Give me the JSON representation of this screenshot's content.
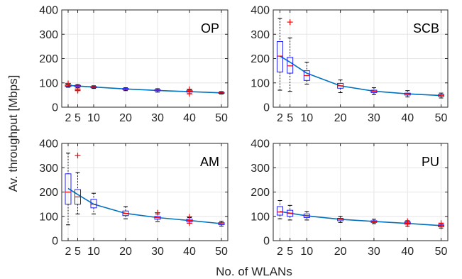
{
  "figure": {
    "ylabel": "Av. throughput [Mbps]",
    "xlabel": "No. of WLANs"
  },
  "colors": {
    "box": "#1f1fff",
    "median": "#ff0000",
    "outlier": "#ff0000",
    "whisker": "#000000",
    "mean_line": "#0072bd",
    "grid": "#e6e6e6"
  },
  "chart_data": [
    {
      "type": "box",
      "title": "OP",
      "x_ticks": [
        2,
        5,
        10,
        20,
        30,
        40,
        50
      ],
      "x_tick_labels": [
        "2",
        "5",
        "10",
        "20",
        "30",
        "40",
        "50"
      ],
      "xlim": [
        0,
        52
      ],
      "y_ticks": [
        0,
        100,
        200,
        300,
        400
      ],
      "ylim": [
        0,
        400
      ],
      "grid": true,
      "boxes": [
        {
          "x": 2,
          "whisker_low": 82,
          "q1": 85,
          "median": 88,
          "q3": 92,
          "whisker_high": 96,
          "outliers": [
            98
          ]
        },
        {
          "x": 5,
          "whisker_low": 80,
          "q1": 84,
          "median": 87,
          "q3": 90,
          "whisker_high": 93,
          "outliers": [
            75,
            70,
            68
          ]
        },
        {
          "x": 10,
          "whisker_low": 77,
          "q1": 80,
          "median": 82,
          "q3": 85,
          "whisker_high": 88,
          "outliers": []
        },
        {
          "x": 20,
          "whisker_low": 68,
          "q1": 72,
          "median": 74,
          "q3": 77,
          "whisker_high": 80,
          "outliers": []
        },
        {
          "x": 30,
          "whisker_low": 62,
          "q1": 67,
          "median": 69,
          "q3": 72,
          "whisker_high": 76,
          "outliers": []
        },
        {
          "x": 40,
          "whisker_low": 56,
          "q1": 62,
          "median": 65,
          "q3": 68,
          "whisker_high": 72,
          "outliers": [
            74,
            55
          ]
        },
        {
          "x": 50,
          "whisker_low": 54,
          "q1": 57,
          "median": 59,
          "q3": 61,
          "whisker_high": 64,
          "outliers": []
        }
      ],
      "mean_line": {
        "x": [
          2,
          5,
          10,
          20,
          30,
          40,
          50
        ],
        "y": [
          90,
          87,
          83,
          75,
          69,
          64,
          59
        ]
      }
    },
    {
      "type": "box",
      "title": "SCB",
      "x_ticks": [
        2,
        5,
        10,
        20,
        30,
        40,
        50
      ],
      "x_tick_labels": [
        "2",
        "5",
        "10",
        "20",
        "30",
        "40",
        "50"
      ],
      "xlim": [
        0,
        52
      ],
      "y_ticks": [
        0,
        100,
        200,
        300,
        400
      ],
      "ylim": [
        0,
        400
      ],
      "grid": true,
      "boxes": [
        {
          "x": 2,
          "whisker_low": 70,
          "q1": 145,
          "median": 210,
          "q3": 270,
          "whisker_high": 365,
          "outliers": []
        },
        {
          "x": 5,
          "whisker_low": 65,
          "q1": 140,
          "median": 170,
          "q3": 205,
          "whisker_high": 285,
          "outliers": [
            350
          ]
        },
        {
          "x": 10,
          "whisker_low": 95,
          "q1": 110,
          "median": 130,
          "q3": 150,
          "whisker_high": 185,
          "outliers": []
        },
        {
          "x": 20,
          "whisker_low": 60,
          "q1": 78,
          "median": 88,
          "q3": 98,
          "whisker_high": 112,
          "outliers": []
        },
        {
          "x": 30,
          "whisker_low": 52,
          "q1": 60,
          "median": 65,
          "q3": 70,
          "whisker_high": 80,
          "outliers": []
        },
        {
          "x": 40,
          "whisker_low": 42,
          "q1": 50,
          "median": 55,
          "q3": 58,
          "whisker_high": 68,
          "outliers": []
        },
        {
          "x": 50,
          "whisker_low": 38,
          "q1": 45,
          "median": 49,
          "q3": 52,
          "whisker_high": 58,
          "outliers": []
        }
      ],
      "mean_line": {
        "x": [
          2,
          5,
          10,
          20,
          30,
          40,
          50
        ],
        "y": [
          210,
          185,
          140,
          88,
          66,
          55,
          48
        ]
      }
    },
    {
      "type": "box",
      "title": "AM",
      "x_ticks": [
        2,
        5,
        10,
        20,
        30,
        40,
        50
      ],
      "x_tick_labels": [
        "2",
        "5",
        "10",
        "20",
        "30",
        "40",
        "50"
      ],
      "xlim": [
        0,
        52
      ],
      "y_ticks": [
        0,
        100,
        200,
        300,
        400
      ],
      "ylim": [
        0,
        400
      ],
      "grid": true,
      "boxes": [
        {
          "x": 2,
          "whisker_low": 65,
          "q1": 150,
          "median": 200,
          "q3": 275,
          "whisker_high": 360,
          "outliers": []
        },
        {
          "x": 5,
          "whisker_low": 110,
          "q1": 150,
          "median": 180,
          "q3": 210,
          "whisker_high": 280,
          "outliers": [
            350
          ]
        },
        {
          "x": 10,
          "whisker_low": 110,
          "q1": 135,
          "median": 150,
          "q3": 170,
          "whisker_high": 195,
          "outliers": []
        },
        {
          "x": 20,
          "whisker_low": 90,
          "q1": 103,
          "median": 112,
          "q3": 122,
          "whisker_high": 140,
          "outliers": []
        },
        {
          "x": 30,
          "whisker_low": 78,
          "q1": 88,
          "median": 95,
          "q3": 100,
          "whisker_high": 110,
          "outliers": [
            115
          ]
        },
        {
          "x": 40,
          "whisker_low": 72,
          "q1": 78,
          "median": 83,
          "q3": 88,
          "whisker_high": 95,
          "outliers": [
            98,
            72
          ]
        },
        {
          "x": 50,
          "whisker_low": 60,
          "q1": 66,
          "median": 70,
          "q3": 74,
          "whisker_high": 80,
          "outliers": []
        }
      ],
      "mean_line": {
        "x": [
          2,
          5,
          10,
          20,
          30,
          40,
          50
        ],
        "y": [
          215,
          190,
          150,
          112,
          95,
          83,
          70
        ]
      }
    },
    {
      "type": "box",
      "title": "PU",
      "x_ticks": [
        2,
        5,
        10,
        20,
        30,
        40,
        50
      ],
      "x_tick_labels": [
        "2",
        "5",
        "10",
        "20",
        "30",
        "40",
        "50"
      ],
      "xlim": [
        0,
        52
      ],
      "y_ticks": [
        0,
        100,
        200,
        300,
        400
      ],
      "ylim": [
        0,
        400
      ],
      "grid": true,
      "boxes": [
        {
          "x": 2,
          "whisker_low": 90,
          "q1": 105,
          "median": 118,
          "q3": 140,
          "whisker_high": 165,
          "outliers": []
        },
        {
          "x": 5,
          "whisker_low": 85,
          "q1": 100,
          "median": 113,
          "q3": 125,
          "whisker_high": 145,
          "outliers": []
        },
        {
          "x": 10,
          "whisker_low": 85,
          "q1": 95,
          "median": 103,
          "q3": 110,
          "whisker_high": 120,
          "outliers": []
        },
        {
          "x": 20,
          "whisker_low": 75,
          "q1": 82,
          "median": 88,
          "q3": 92,
          "whisker_high": 100,
          "outliers": []
        },
        {
          "x": 30,
          "whisker_low": 70,
          "q1": 75,
          "median": 78,
          "q3": 82,
          "whisker_high": 88,
          "outliers": []
        },
        {
          "x": 40,
          "whisker_low": 60,
          "q1": 68,
          "median": 72,
          "q3": 76,
          "whisker_high": 82,
          "outliers": [
            80,
            68
          ]
        },
        {
          "x": 50,
          "whisker_low": 52,
          "q1": 58,
          "median": 62,
          "q3": 65,
          "whisker_high": 70,
          "outliers": [
            72,
            58
          ]
        }
      ],
      "mean_line": {
        "x": [
          2,
          5,
          10,
          20,
          30,
          40,
          50
        ],
        "y": [
          120,
          113,
          102,
          88,
          79,
          71,
          62
        ]
      }
    }
  ]
}
